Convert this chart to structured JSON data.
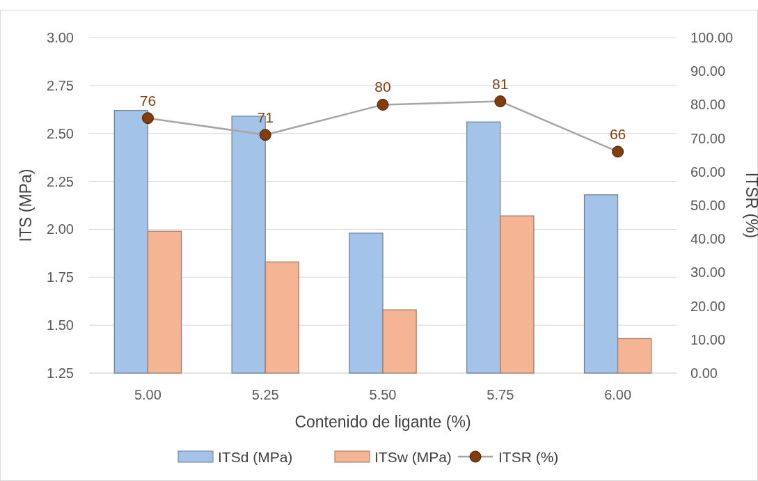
{
  "chart_data": {
    "type": "bar",
    "xlabel": "Contenido de ligante (%)",
    "ylabel": "ITS (MPa)",
    "y2label": "ITSR (%)",
    "categories": [
      "5.00",
      "5.25",
      "5.50",
      "5.75",
      "6.00"
    ],
    "series": [
      {
        "name": "ITSd (MPa)",
        "color": "#a4c3e8",
        "values": [
          2.62,
          2.59,
          1.98,
          2.56,
          2.18
        ]
      },
      {
        "name": "ITSw (MPa)",
        "color": "#f5b493",
        "values": [
          1.99,
          1.83,
          1.58,
          2.07,
          1.43
        ]
      },
      {
        "name": "ITSR (%)",
        "type": "line",
        "axis": "y2",
        "color": "#a5a5a5",
        "marker": "circle",
        "line_style": "solid",
        "values": [
          76,
          71,
          80,
          81,
          66
        ],
        "value_labels": [
          "76",
          "71",
          "80",
          "81",
          "66"
        ]
      }
    ],
    "ylim": [
      1.25,
      3
    ],
    "yticks": [
      {
        "value": 1.25,
        "label": "1.25"
      },
      {
        "value": 1.5,
        "label": "1.50"
      },
      {
        "value": 1.75,
        "label": "1.75"
      },
      {
        "value": 2,
        "label": "2.00"
      },
      {
        "value": 2.25,
        "label": "2.25"
      },
      {
        "value": 2.5,
        "label": "2.50"
      },
      {
        "value": 2.75,
        "label": "2.75"
      },
      {
        "value": 3,
        "label": "3.00"
      }
    ],
    "y2lim": [
      0,
      100
    ],
    "y2ticks": [
      {
        "value": 0,
        "label": "0.00"
      },
      {
        "value": 10,
        "label": "10.00"
      },
      {
        "value": 20,
        "label": "20.00"
      },
      {
        "value": 30,
        "label": "30.00"
      },
      {
        "value": 40,
        "label": "40.00"
      },
      {
        "value": 50,
        "label": "50.00"
      },
      {
        "value": 60,
        "label": "60.00"
      },
      {
        "value": 70,
        "label": "70.00"
      },
      {
        "value": 80,
        "label": "80.00"
      },
      {
        "value": 90,
        "label": "90.00"
      },
      {
        "value": 100,
        "label": "100.00"
      }
    ],
    "grid": "y",
    "legend": "bottom"
  }
}
